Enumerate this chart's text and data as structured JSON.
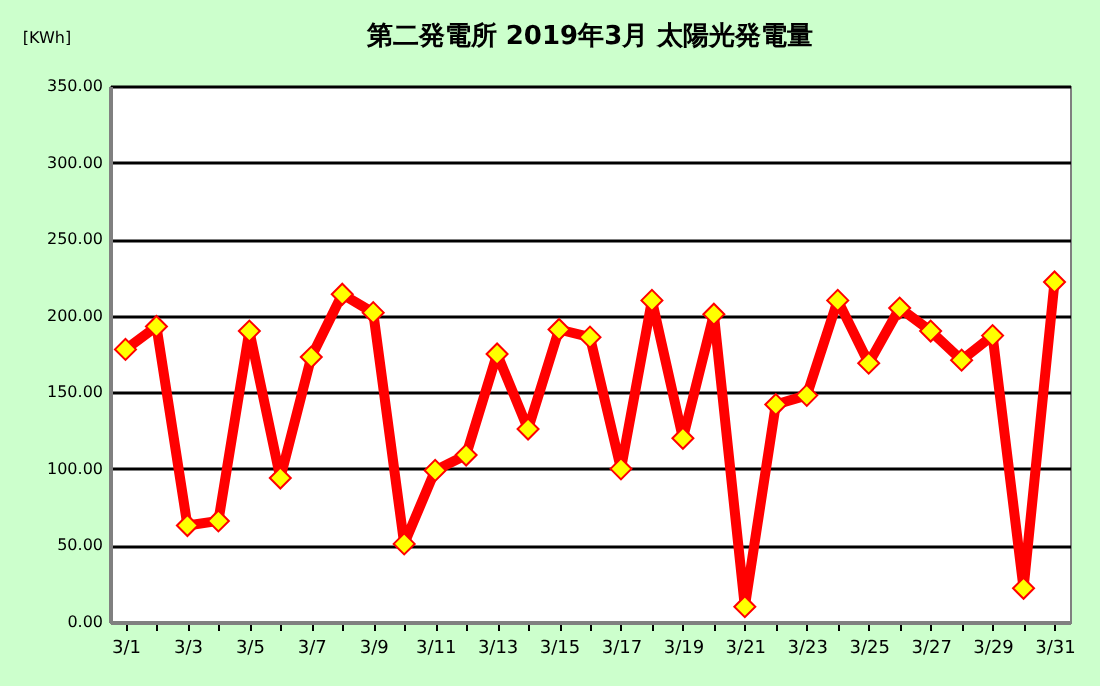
{
  "chart_data": {
    "type": "line",
    "title": "第二発電所  2019年3月  太陽光発電量",
    "ylabel": "[KWh]",
    "categories": [
      "3/1",
      null,
      "3/3",
      null,
      "3/5",
      null,
      "3/7",
      null,
      "3/9",
      null,
      "3/11",
      null,
      "3/13",
      null,
      "3/15",
      null,
      "3/17",
      null,
      "3/19",
      null,
      "3/21",
      null,
      "3/23",
      null,
      "3/25",
      null,
      "3/27",
      null,
      "3/29",
      null,
      "3/31"
    ],
    "series": [
      {
        "color": "#ff0000",
        "values": [
          178,
          193,
          63,
          66,
          190,
          94,
          173,
          214,
          202,
          51,
          99,
          109,
          175,
          126,
          191,
          186,
          100,
          210,
          120,
          201,
          10,
          142,
          148,
          210,
          169,
          205,
          190,
          171,
          187,
          22,
          222
        ]
      }
    ],
    "ylim": [
      0,
      350
    ],
    "yticks": [
      {
        "value": 0,
        "label": "0.00"
      },
      {
        "value": 50,
        "label": "50.00"
      },
      {
        "value": 100,
        "label": "100.00"
      },
      {
        "value": 150,
        "label": "150.00"
      },
      {
        "value": 200,
        "label": "200.00"
      },
      {
        "value": 250,
        "label": "250.00"
      },
      {
        "value": 300,
        "label": "300.00"
      },
      {
        "value": 350,
        "label": "350.00"
      }
    ],
    "grid": "y",
    "marker": "diamond",
    "line_style": "solid"
  }
}
